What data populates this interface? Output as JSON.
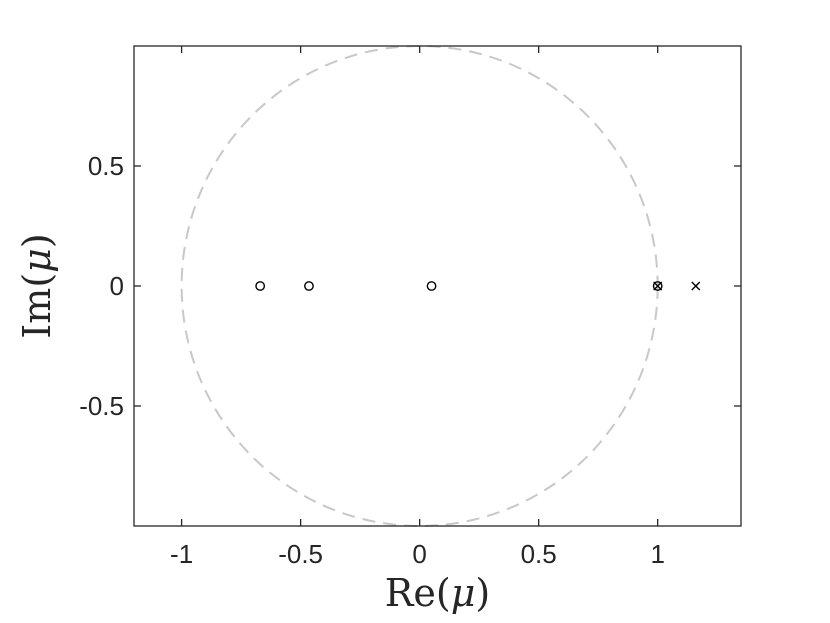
{
  "chart_data": {
    "type": "scatter",
    "title": "",
    "xlabel": {
      "prefix": "Re(",
      "symbol": "μ",
      "suffix": ")"
    },
    "ylabel": {
      "prefix": "Im(",
      "symbol": "μ",
      "suffix": ")"
    },
    "xlim": [
      -1.2,
      1.35
    ],
    "ylim": [
      -1,
      1
    ],
    "xticks": [
      -1,
      -0.5,
      0,
      0.5,
      1
    ],
    "xtick_labels": [
      "-1",
      "-0.5",
      "0",
      "0.5",
      "1"
    ],
    "yticks": [
      -0.5,
      0,
      0.5
    ],
    "ytick_labels": [
      "-0.5",
      "0",
      "0.5"
    ],
    "grid": false,
    "unit_circle": {
      "center": [
        0,
        0
      ],
      "radius": 1,
      "style": "dashed",
      "color": "#c8c8c8"
    },
    "series": [
      {
        "marker": "circle",
        "color": "#000000",
        "points": [
          [
            -0.67,
            0
          ],
          [
            -0.465,
            0
          ],
          [
            0.05,
            0
          ],
          [
            1.0,
            0
          ]
        ]
      },
      {
        "marker": "cross",
        "color": "#000000",
        "points": [
          [
            1.0,
            0
          ],
          [
            1.16,
            0
          ]
        ]
      }
    ]
  }
}
